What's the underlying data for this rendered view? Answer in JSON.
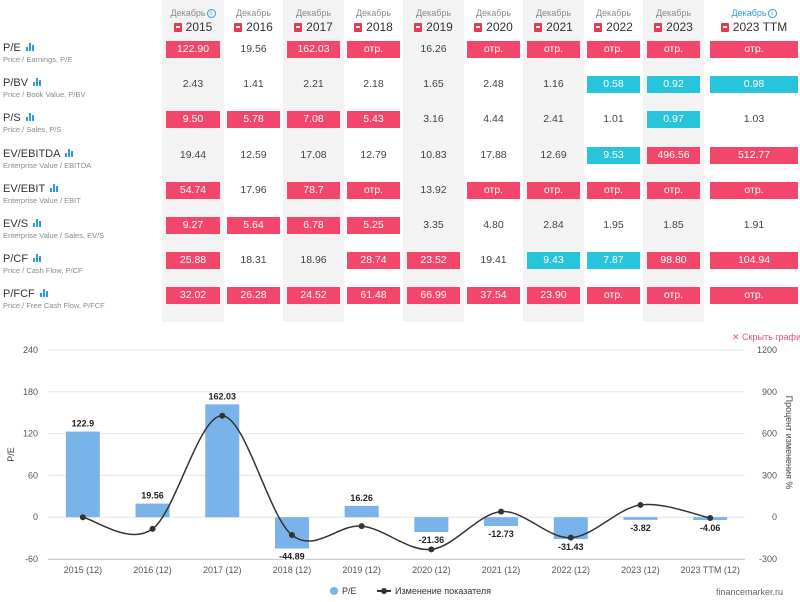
{
  "table": {
    "columns": [
      {
        "label": "Декабрь",
        "year": "2015",
        "info": true
      },
      {
        "label": "Декабрь",
        "year": "2016"
      },
      {
        "label": "Декабрь",
        "year": "2017"
      },
      {
        "label": "Декабрь",
        "year": "2018"
      },
      {
        "label": "Декабрь",
        "year": "2019"
      },
      {
        "label": "Декабрь",
        "year": "2020"
      },
      {
        "label": "Декабрь",
        "year": "2021"
      },
      {
        "label": "Декабрь",
        "year": "2022"
      },
      {
        "label": "Декабрь",
        "year": "2023"
      },
      {
        "label": "Декабрь",
        "year": "2023 TTM",
        "info": true
      }
    ],
    "rows": [
      {
        "name": "P/E",
        "chart_icon": true,
        "sub": "Price / Earnings, P/E",
        "cells": [
          [
            "122.90",
            "red"
          ],
          [
            "19.56",
            ""
          ],
          [
            "162.03",
            "red"
          ],
          [
            "отр.",
            "red"
          ],
          [
            "16.26",
            ""
          ],
          [
            "отр.",
            "red"
          ],
          [
            "отр.",
            "red"
          ],
          [
            "отр.",
            "red"
          ],
          [
            "отр.",
            "red"
          ],
          [
            "отр.",
            "red"
          ]
        ]
      },
      {
        "name": "P/BV",
        "chart_icon": true,
        "sub": "Price / Book Value, P/BV",
        "cells": [
          [
            "2.43",
            ""
          ],
          [
            "1.41",
            ""
          ],
          [
            "2.21",
            ""
          ],
          [
            "2.18",
            ""
          ],
          [
            "1.65",
            ""
          ],
          [
            "2.48",
            ""
          ],
          [
            "1.16",
            ""
          ],
          [
            "0.58",
            "cyan"
          ],
          [
            "0.92",
            "cyan"
          ],
          [
            "0.98",
            "cyan"
          ]
        ]
      },
      {
        "name": "P/S",
        "chart_icon": true,
        "sub": "Price / Sales, P/S",
        "cells": [
          [
            "9.50",
            "red"
          ],
          [
            "5.78",
            "red"
          ],
          [
            "7.08",
            "red"
          ],
          [
            "5.43",
            "red"
          ],
          [
            "3.16",
            ""
          ],
          [
            "4.44",
            ""
          ],
          [
            "2.41",
            ""
          ],
          [
            "1.01",
            ""
          ],
          [
            "0.97",
            "cyan"
          ],
          [
            "1.03",
            ""
          ]
        ]
      },
      {
        "name": "EV/EBITDA",
        "chart_icon": true,
        "sub": "Enterprise Value / EBITDA",
        "cells": [
          [
            "19.44",
            ""
          ],
          [
            "12.59",
            ""
          ],
          [
            "17.08",
            ""
          ],
          [
            "12.79",
            ""
          ],
          [
            "10.83",
            ""
          ],
          [
            "17.88",
            ""
          ],
          [
            "12.69",
            ""
          ],
          [
            "9.53",
            "cyan"
          ],
          [
            "496.56",
            "red"
          ],
          [
            "512.77",
            "red"
          ]
        ]
      },
      {
        "name": "EV/EBIT",
        "chart_icon": true,
        "sub": "Enterprise Value / EBIT",
        "cells": [
          [
            "54.74",
            "red"
          ],
          [
            "17.96",
            ""
          ],
          [
            "78.7",
            "red"
          ],
          [
            "отр.",
            "red"
          ],
          [
            "13.92",
            ""
          ],
          [
            "отр.",
            "red"
          ],
          [
            "отр.",
            "red"
          ],
          [
            "отр.",
            "red"
          ],
          [
            "отр.",
            "red"
          ],
          [
            "отр.",
            "red"
          ]
        ]
      },
      {
        "name": "EV/S",
        "chart_icon": true,
        "sub": "Enterprise Value / Sales, EV/S",
        "cells": [
          [
            "9.27",
            "red"
          ],
          [
            "5.64",
            "red"
          ],
          [
            "6.78",
            "red"
          ],
          [
            "5.25",
            "red"
          ],
          [
            "3.35",
            ""
          ],
          [
            "4.80",
            ""
          ],
          [
            "2.84",
            ""
          ],
          [
            "1.95",
            ""
          ],
          [
            "1.85",
            ""
          ],
          [
            "1.91",
            ""
          ]
        ]
      },
      {
        "name": "P/CF",
        "chart_icon": true,
        "sub": "Price / Cash Flow, P/CF",
        "cells": [
          [
            "25.88",
            "red"
          ],
          [
            "18.31",
            ""
          ],
          [
            "18.96",
            ""
          ],
          [
            "28.74",
            "red"
          ],
          [
            "23.52",
            "red"
          ],
          [
            "19.41",
            ""
          ],
          [
            "9.43",
            "cyan"
          ],
          [
            "7.87",
            "cyan"
          ],
          [
            "98.80",
            "red"
          ],
          [
            "104.94",
            "red"
          ]
        ]
      },
      {
        "name": "P/FCF",
        "chart_icon": true,
        "sub": "Price / Free Cash Flow, P/FCF",
        "cells": [
          [
            "32.02",
            "red"
          ],
          [
            "26.28",
            "red"
          ],
          [
            "24.52",
            "red"
          ],
          [
            "61.48",
            "red"
          ],
          [
            "66.99",
            "red"
          ],
          [
            "37.54",
            "red"
          ],
          [
            "23.90",
            "red"
          ],
          [
            "отр.",
            "red"
          ],
          [
            "отр.",
            "red"
          ],
          [
            "отр.",
            "red"
          ]
        ]
      }
    ]
  },
  "hide_chart_label": "✕ Скрыть графи",
  "colors": {
    "red": "#f2466b",
    "cyan": "#27c4dc",
    "bar": "#7ab3ea",
    "line": "#333333"
  },
  "chart_data": {
    "type": "bar",
    "categories": [
      "2015 (12)",
      "2016 (12)",
      "2017 (12)",
      "2018 (12)",
      "2019 (12)",
      "2020 (12)",
      "2021 (12)",
      "2022 (12)",
      "2023 (12)",
      "2023 TTM (12)"
    ],
    "series": [
      {
        "name": "P/E",
        "type": "bar",
        "axis": "left",
        "values": [
          122.9,
          19.56,
          162.03,
          -44.89,
          16.26,
          -21.36,
          -12.73,
          -31.43,
          -3.82,
          -4.06
        ],
        "labels": [
          "122.9",
          "19.56",
          "162.03",
          "-44.89",
          "16.26",
          "-21.36",
          "-12.73",
          "-31.43",
          "-3.82",
          "-4.06"
        ]
      },
      {
        "name": "Изменение показателя",
        "type": "line",
        "axis": "right",
        "values": [
          0,
          -84,
          728,
          -128,
          -64,
          -231,
          40,
          -147,
          88,
          -6
        ]
      }
    ],
    "ylabel": "P/E",
    "y2label": "Процент изменения %",
    "ylim": [
      -60,
      240
    ],
    "yticks": [
      "240",
      "180",
      "120",
      "60",
      "0",
      "-60"
    ],
    "y2lim": [
      -300,
      1200
    ],
    "y2ticks": [
      "1200",
      "900",
      "600",
      "300",
      "0",
      "-300"
    ],
    "grid": true,
    "legend_position": "bottom"
  },
  "watermark": "financemarker.ru"
}
